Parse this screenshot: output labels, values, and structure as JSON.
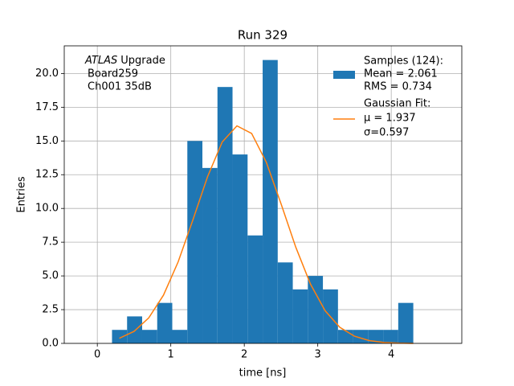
{
  "chart_data": {
    "type": "histogram",
    "title": "Run 329",
    "xlabel": "time [ns]",
    "ylabel": "Entries",
    "annotation": {
      "italic": "ATLAS",
      "lines": [
        "Upgrade",
        "Board259",
        "Ch001 35dB"
      ]
    },
    "bins": [
      0.2,
      0.405,
      0.61,
      0.815,
      1.02,
      1.225,
      1.43,
      1.635,
      1.84,
      2.045,
      2.25,
      2.455,
      2.66,
      2.865,
      3.07,
      3.275,
      3.48,
      3.685,
      3.89,
      4.095,
      4.3
    ],
    "counts": [
      1,
      2,
      1,
      3,
      1,
      15,
      13,
      19,
      14,
      8,
      21,
      6,
      4,
      5,
      4,
      1,
      1,
      1,
      1,
      3
    ],
    "color": "#1f77b4",
    "histogram_legend": [
      "Samples (124):",
      " Mean = 2.061",
      " RMS = 0.734"
    ],
    "fit": {
      "color": "#ff7f0e",
      "legend": [
        "Gaussian Fit:",
        " μ = 1.937",
        " σ=0.597"
      ],
      "x": [
        0.3,
        0.5,
        0.7,
        0.9,
        1.1,
        1.3,
        1.5,
        1.7,
        1.9,
        2.1,
        2.3,
        2.5,
        2.7,
        2.9,
        3.1,
        3.3,
        3.5,
        3.7,
        3.9,
        4.1,
        4.3
      ],
      "y": [
        0.38,
        0.89,
        1.89,
        3.57,
        6.04,
        9.14,
        12.35,
        14.93,
        16.12,
        15.56,
        13.42,
        10.35,
        7.14,
        4.4,
        2.42,
        1.19,
        0.53,
        0.21,
        0.07,
        0.02,
        0.0
      ]
    },
    "xlim": [
      -0.45,
      4.96
    ],
    "ylim": [
      0,
      22.05
    ],
    "xticks": [
      0,
      1,
      2,
      3,
      4
    ],
    "yticks": [
      {
        "value": 0,
        "label": "0.0"
      },
      2.5,
      {
        "value": 5,
        "label": "5.0"
      },
      7.5,
      {
        "value": 10,
        "label": "10.0"
      },
      12.5,
      {
        "value": 15,
        "label": "15.0"
      },
      17.5,
      {
        "value": 20,
        "label": "20.0"
      }
    ],
    "grid": true,
    "legend": "upper right"
  }
}
